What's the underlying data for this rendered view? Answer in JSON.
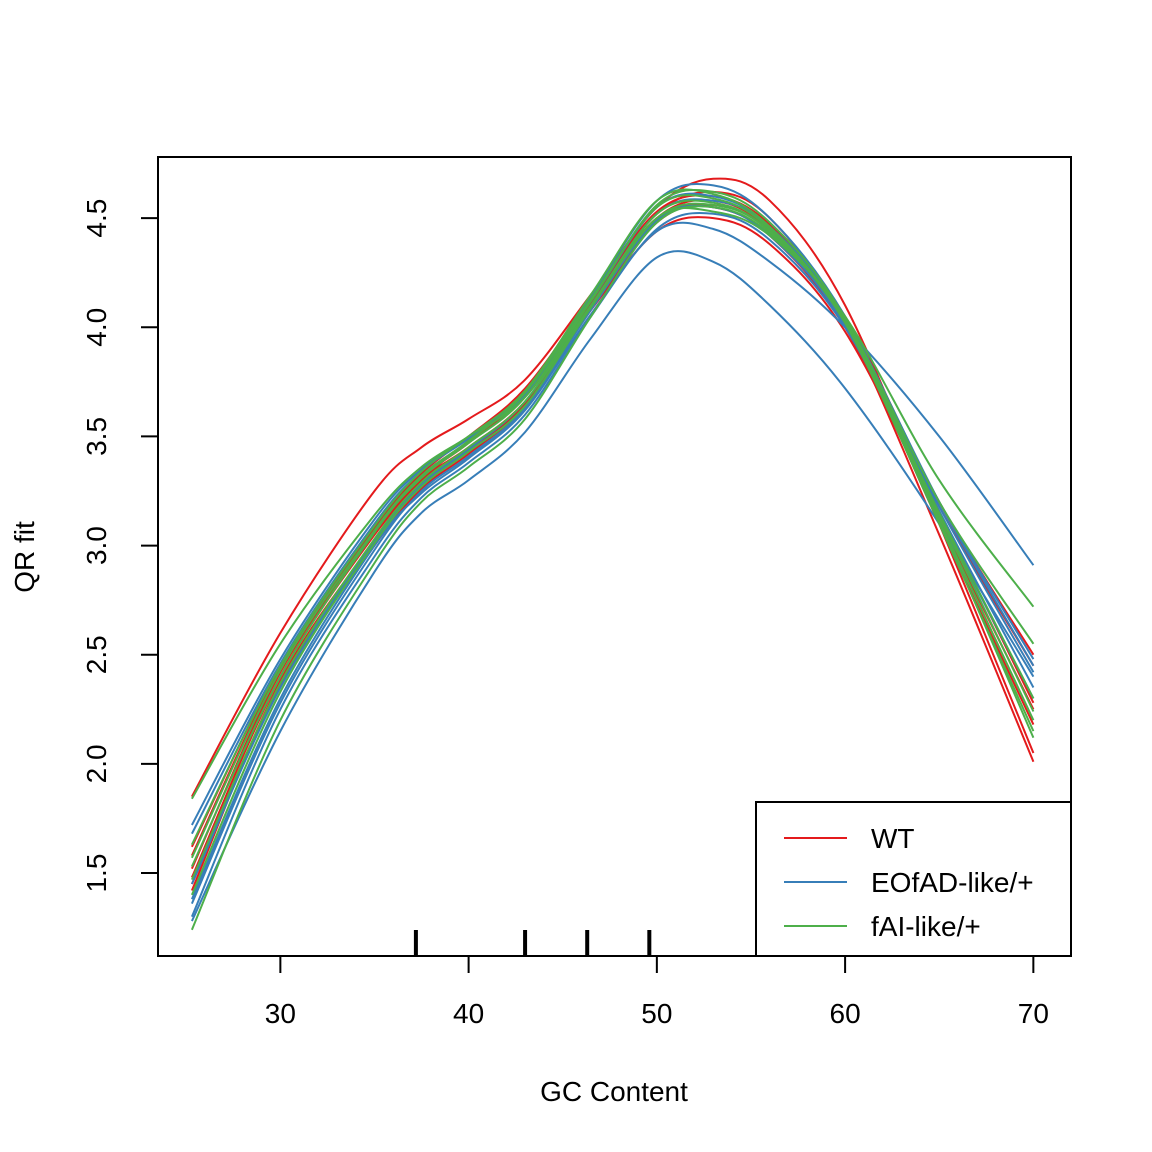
{
  "chart_data": {
    "type": "line",
    "title": "",
    "xlabel": "GC Content",
    "ylabel": "QR fit",
    "xlim": [
      23.5,
      72
    ],
    "ylim": [
      1.12,
      4.78
    ],
    "xticks": [
      30,
      40,
      50,
      60,
      70
    ],
    "yticks": [
      1.5,
      2.0,
      2.5,
      3.0,
      3.5,
      4.0,
      4.5
    ],
    "xtick_labels": [
      "30",
      "40",
      "50",
      "60",
      "70"
    ],
    "ytick_labels": [
      "1.5",
      "2.0",
      "2.5",
      "3.0",
      "3.5",
      "4.0",
      "4.5"
    ],
    "grid": false,
    "legend": {
      "placement": "bottom-right",
      "entries": [
        {
          "label": "WT",
          "color": "#E41A1C"
        },
        {
          "label": "EOfAD-like/+",
          "color": "#377EB8"
        },
        {
          "label": "fAI-like/+",
          "color": "#4DAF4A"
        }
      ]
    },
    "rug_x": [
      37.2,
      43.0,
      46.3,
      49.6
    ],
    "rug_color": "#000000",
    "series": [
      {
        "group": "WT",
        "color": "#E41A1C",
        "x": [
          25.3,
          30,
          35,
          37.5,
          40,
          43,
          46.5,
          50,
          53,
          56,
          60,
          65,
          70
        ],
        "y": [
          1.85,
          2.6,
          3.25,
          3.45,
          3.58,
          3.76,
          4.15,
          4.55,
          4.68,
          4.58,
          4.1,
          3.1,
          2.05
        ]
      },
      {
        "group": "WT",
        "color": "#E41A1C",
        "x": [
          25.3,
          30,
          35,
          37.5,
          40,
          43,
          46.5,
          50,
          53,
          56,
          60,
          65,
          70
        ],
        "y": [
          1.62,
          2.45,
          3.05,
          3.3,
          3.48,
          3.7,
          4.12,
          4.52,
          4.62,
          4.5,
          4.02,
          3.05,
          2.01
        ]
      },
      {
        "group": "WT",
        "color": "#E41A1C",
        "x": [
          25.3,
          30,
          35,
          37.5,
          40,
          43,
          46.5,
          50,
          53,
          56,
          60,
          65,
          70
        ],
        "y": [
          1.48,
          2.4,
          3.05,
          3.3,
          3.45,
          3.66,
          4.08,
          4.44,
          4.5,
          4.38,
          3.98,
          3.15,
          2.28
        ]
      },
      {
        "group": "WT",
        "color": "#E41A1C",
        "x": [
          25.3,
          30,
          35,
          37.5,
          40,
          43,
          46.5,
          50,
          53,
          56,
          60,
          65,
          70
        ],
        "y": [
          1.42,
          2.38,
          3.02,
          3.28,
          3.44,
          3.65,
          4.1,
          4.5,
          4.58,
          4.45,
          4.05,
          3.2,
          2.5
        ]
      },
      {
        "group": "WT",
        "color": "#E41A1C",
        "x": [
          25.3,
          30,
          35,
          37.5,
          40,
          43,
          46.5,
          50,
          53,
          56,
          60,
          65,
          70
        ],
        "y": [
          1.45,
          2.36,
          3.0,
          3.26,
          3.42,
          3.64,
          4.08,
          4.48,
          4.56,
          4.44,
          4.02,
          3.18,
          2.45
        ]
      },
      {
        "group": "WT",
        "color": "#E41A1C",
        "x": [
          25.3,
          30,
          35,
          37.5,
          40,
          43,
          46.5,
          50,
          53,
          56,
          60,
          65,
          70
        ],
        "y": [
          1.52,
          2.42,
          3.06,
          3.31,
          3.47,
          3.69,
          4.11,
          4.5,
          4.55,
          4.42,
          4.0,
          3.12,
          2.25
        ]
      },
      {
        "group": "WT",
        "color": "#E41A1C",
        "x": [
          25.3,
          30,
          35,
          37.5,
          40,
          43,
          46.5,
          50,
          53,
          56,
          60,
          65,
          70
        ],
        "y": [
          1.58,
          2.44,
          3.08,
          3.33,
          3.5,
          3.72,
          4.13,
          4.53,
          4.6,
          4.47,
          4.03,
          3.1,
          2.18
        ]
      },
      {
        "group": "EOfAD-like/+",
        "color": "#377EB8",
        "x": [
          25.3,
          30,
          35,
          37.5,
          40,
          43,
          46.5,
          50,
          53,
          56,
          60,
          65,
          70
        ],
        "y": [
          1.28,
          2.15,
          2.88,
          3.15,
          3.3,
          3.52,
          3.95,
          4.32,
          4.3,
          4.1,
          3.72,
          3.1,
          2.4
        ]
      },
      {
        "group": "EOfAD-like/+",
        "color": "#377EB8",
        "x": [
          25.3,
          30,
          35,
          37.5,
          40,
          43,
          46.5,
          50,
          53,
          56,
          60,
          65,
          70
        ],
        "y": [
          1.38,
          2.3,
          3.0,
          3.24,
          3.4,
          3.62,
          4.06,
          4.44,
          4.45,
          4.3,
          4.0,
          3.5,
          2.91
        ]
      },
      {
        "group": "EOfAD-like/+",
        "color": "#377EB8",
        "x": [
          25.3,
          30,
          35,
          37.5,
          40,
          43,
          46.5,
          50,
          53,
          56,
          60,
          65,
          70
        ],
        "y": [
          1.72,
          2.48,
          3.12,
          3.35,
          3.5,
          3.7,
          4.14,
          4.58,
          4.65,
          4.5,
          4.05,
          3.2,
          2.45
        ]
      },
      {
        "group": "EOfAD-like/+",
        "color": "#377EB8",
        "x": [
          25.3,
          30,
          35,
          37.5,
          40,
          43,
          46.5,
          50,
          53,
          56,
          60,
          65,
          70
        ],
        "y": [
          1.68,
          2.46,
          3.1,
          3.34,
          3.49,
          3.69,
          4.12,
          4.55,
          4.6,
          4.46,
          4.03,
          3.18,
          2.42
        ]
      },
      {
        "group": "EOfAD-like/+",
        "color": "#377EB8",
        "x": [
          25.3,
          30,
          35,
          37.5,
          40,
          43,
          46.5,
          50,
          53,
          56,
          60,
          65,
          70
        ],
        "y": [
          1.3,
          2.25,
          2.95,
          3.22,
          3.38,
          3.6,
          4.05,
          4.45,
          4.52,
          4.4,
          4.0,
          3.2,
          2.48
        ]
      },
      {
        "group": "EOfAD-like/+",
        "color": "#377EB8",
        "x": [
          25.3,
          30,
          35,
          37.5,
          40,
          43,
          46.5,
          50,
          53,
          56,
          60,
          65,
          70
        ],
        "y": [
          1.45,
          2.35,
          3.02,
          3.28,
          3.44,
          3.66,
          4.1,
          4.52,
          4.58,
          4.46,
          4.04,
          3.16,
          2.35
        ]
      },
      {
        "group": "EOfAD-like/+",
        "color": "#377EB8",
        "x": [
          25.3,
          30,
          35,
          37.5,
          40,
          43,
          46.5,
          50,
          53,
          56,
          60,
          65,
          70
        ],
        "y": [
          1.36,
          2.28,
          2.98,
          3.25,
          3.41,
          3.63,
          4.08,
          4.49,
          4.55,
          4.42,
          4.01,
          3.14,
          2.3
        ]
      },
      {
        "group": "fAI-like/+",
        "color": "#4DAF4A",
        "x": [
          25.3,
          30,
          35,
          37.5,
          40,
          43,
          46.5,
          50,
          53,
          56,
          60,
          65,
          70
        ],
        "y": [
          1.84,
          2.55,
          3.14,
          3.36,
          3.5,
          3.68,
          4.1,
          4.5,
          4.53,
          4.42,
          4.05,
          3.3,
          2.72
        ]
      },
      {
        "group": "fAI-like/+",
        "color": "#4DAF4A",
        "x": [
          25.3,
          30,
          35,
          37.5,
          40,
          43,
          46.5,
          50,
          53,
          56,
          60,
          65,
          70
        ],
        "y": [
          1.24,
          2.2,
          2.92,
          3.2,
          3.36,
          3.58,
          4.05,
          4.48,
          4.55,
          4.43,
          4.04,
          3.2,
          2.55
        ]
      },
      {
        "group": "fAI-like/+",
        "color": "#4DAF4A",
        "x": [
          25.3,
          30,
          35,
          37.5,
          40,
          43,
          46.5,
          50,
          53,
          56,
          60,
          65,
          70
        ],
        "y": [
          1.53,
          2.4,
          3.06,
          3.31,
          3.47,
          3.68,
          4.12,
          4.56,
          4.62,
          4.48,
          4.04,
          3.12,
          2.2
        ]
      },
      {
        "group": "fAI-like/+",
        "color": "#4DAF4A",
        "x": [
          25.3,
          30,
          35,
          37.5,
          40,
          43,
          46.5,
          50,
          53,
          56,
          60,
          65,
          70
        ],
        "y": [
          1.63,
          2.45,
          3.09,
          3.34,
          3.5,
          3.71,
          4.15,
          4.58,
          4.61,
          4.46,
          4.02,
          3.1,
          2.15
        ]
      },
      {
        "group": "fAI-like/+",
        "color": "#4DAF4A",
        "x": [
          25.3,
          30,
          35,
          37.5,
          40,
          43,
          46.5,
          50,
          53,
          56,
          60,
          65,
          70
        ],
        "y": [
          1.4,
          2.33,
          3.01,
          3.27,
          3.43,
          3.64,
          4.09,
          4.5,
          4.56,
          4.44,
          4.03,
          3.15,
          2.3
        ]
      },
      {
        "group": "fAI-like/+",
        "color": "#4DAF4A",
        "x": [
          25.3,
          30,
          35,
          37.5,
          40,
          43,
          46.5,
          50,
          53,
          56,
          60,
          65,
          70
        ],
        "y": [
          1.47,
          2.37,
          3.03,
          3.29,
          3.45,
          3.66,
          4.1,
          4.52,
          4.57,
          4.44,
          4.02,
          3.14,
          2.24
        ]
      },
      {
        "group": "fAI-like/+",
        "color": "#4DAF4A",
        "x": [
          25.3,
          30,
          35,
          37.5,
          40,
          43,
          46.5,
          50,
          53,
          56,
          60,
          65,
          70
        ],
        "y": [
          1.57,
          2.43,
          3.07,
          3.32,
          3.48,
          3.7,
          4.13,
          4.55,
          4.59,
          4.45,
          4.02,
          3.11,
          2.12
        ]
      }
    ]
  }
}
